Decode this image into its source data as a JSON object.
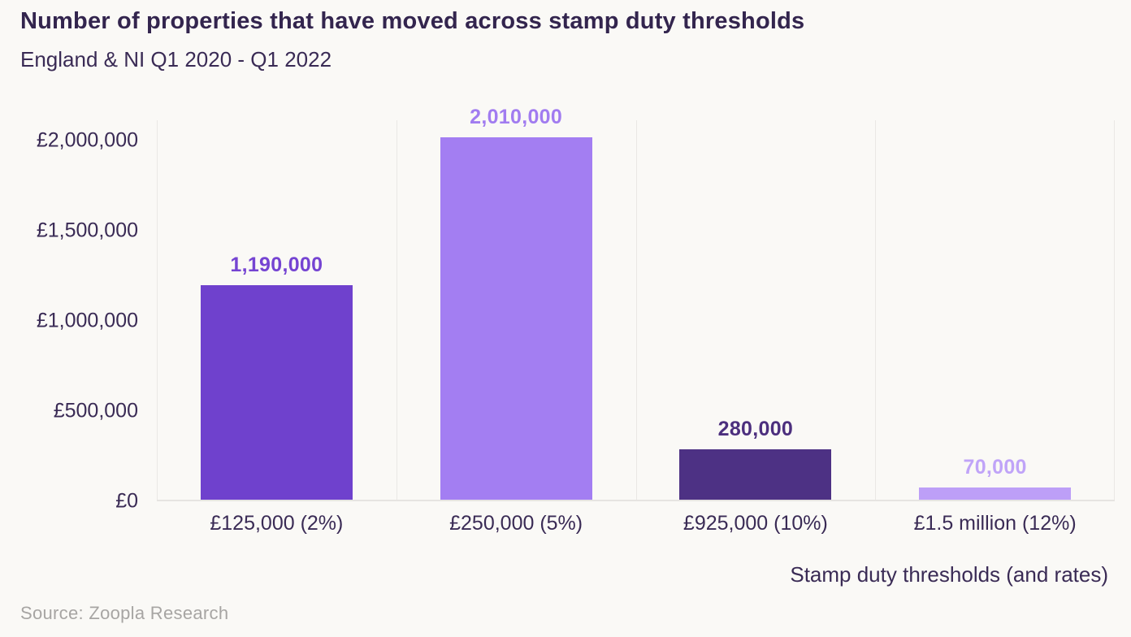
{
  "header": {
    "title": "Number of properties that have moved across stamp duty thresholds",
    "subtitle": "England & NI Q1 2020 - Q1 2022"
  },
  "footer": {
    "source": "Source: Zoopla Research"
  },
  "colors": {
    "background": "#faf9f6",
    "title_text": "#33254e",
    "axis_text": "#3a2b55",
    "gridline": "#eae8e5",
    "source_text": "#a7a5a3"
  },
  "chart_data": {
    "type": "bar",
    "title": "Number of properties that have moved across stamp duty thresholds",
    "subtitle": "England & NI Q1 2020 - Q1 2022",
    "categories": [
      "£125,000 (2%)",
      "£250,000 (5%)",
      "£925,000 (10%)",
      "£1.5 million (12%)"
    ],
    "values": [
      1190000,
      2010000,
      280000,
      70000
    ],
    "value_labels": [
      "1,190,000",
      "2,010,000",
      "280,000",
      "70,000"
    ],
    "bar_colors": [
      "#6f41cd",
      "#a37ef2",
      "#4d3184",
      "#bd9ff7"
    ],
    "value_label_colors": [
      "#7544d2",
      "#a17cf0",
      "#4c2f7e",
      "#c0a4f8"
    ],
    "xlabel": "Stamp duty thresholds (and rates)",
    "ylabel": "",
    "y_ticks": [
      0,
      500000,
      1000000,
      1500000,
      2000000
    ],
    "y_tick_labels": [
      "£0",
      "£500,000",
      "£1,000,000",
      "£1,500,000",
      "£2,000,000"
    ],
    "ylim": [
      0,
      2113000
    ],
    "grid": "vertical-category-separators",
    "legend": "none",
    "source": "Source: Zoopla Research"
  }
}
